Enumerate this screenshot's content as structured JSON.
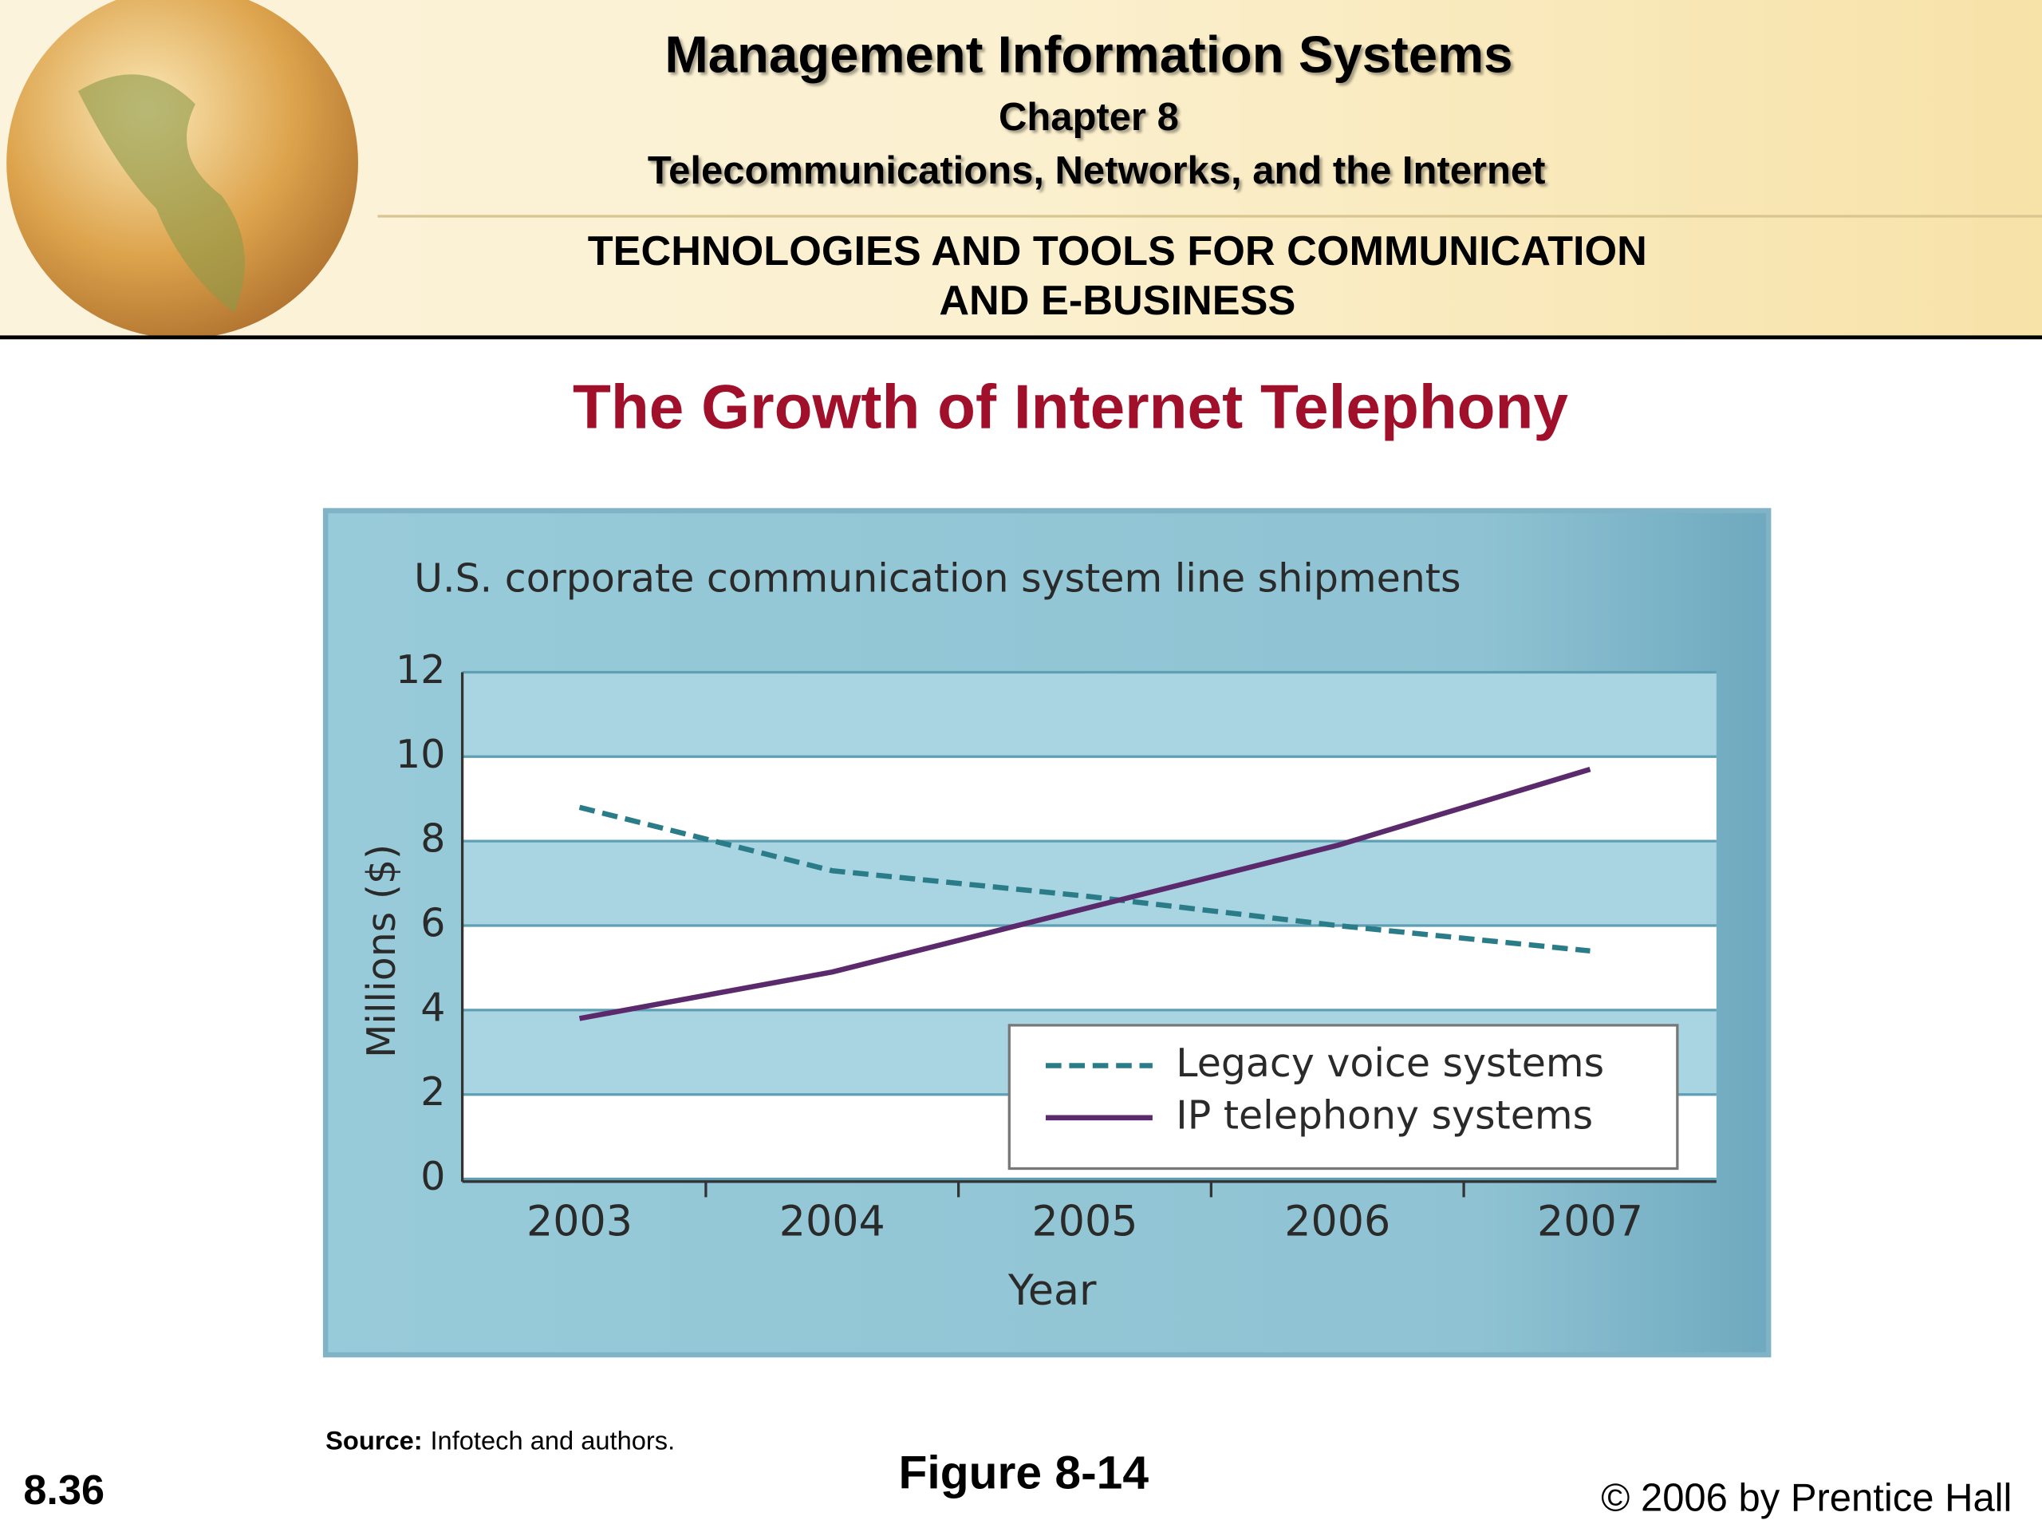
{
  "header": {
    "title": "Management Information Systems",
    "chapter": "Chapter 8",
    "chapter_title": "Telecommunications, Networks, and the Internet",
    "section_line1": "TECHNOLOGIES AND TOOLS FOR COMMUNICATION",
    "section_line2": "AND E-BUSINESS"
  },
  "chart_data": {
    "type": "line",
    "title": "The Growth of Internet Telephony",
    "subtitle": "U.S. corporate communication system line shipments",
    "xlabel": "Year",
    "ylabel": "Millions ($)",
    "categories": [
      "2003",
      "2004",
      "2005",
      "2006",
      "2007"
    ],
    "series": [
      {
        "name": "Legacy voice systems",
        "color": "#2a7c88",
        "dashed": true,
        "values": [
          8.8,
          7.3,
          6.7,
          6.0,
          5.4
        ]
      },
      {
        "name": "IP telephony systems",
        "color": "#5a2a6c",
        "dashed": false,
        "values": [
          3.8,
          4.9,
          6.4,
          7.9,
          9.7
        ]
      }
    ],
    "ylim": [
      0,
      12
    ],
    "yticks": [
      0,
      2,
      4,
      6,
      8,
      10,
      12
    ],
    "grid": true,
    "legend": "lower right"
  },
  "source": {
    "label": "Source:",
    "text": "Infotech and authors."
  },
  "figure": "Figure 8-14",
  "slide_number": "8.36",
  "copyright": "© 2006 by Prentice Hall"
}
